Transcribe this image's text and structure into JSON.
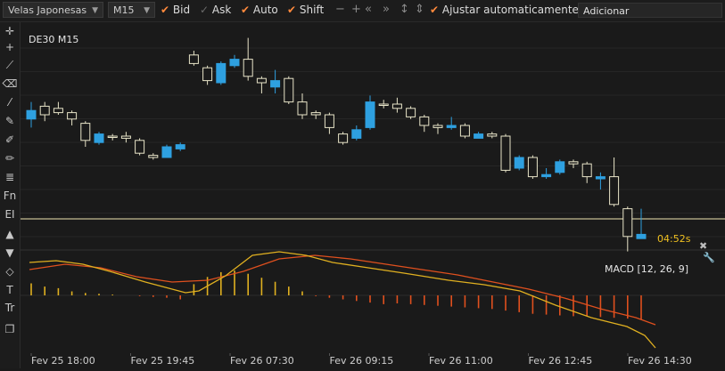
{
  "toolbar": {
    "chart_type": "Velas Japonesas",
    "timeframe": "M15",
    "checks": [
      {
        "label": "Bid",
        "checked": true
      },
      {
        "label": "Ask",
        "checked": false
      },
      {
        "label": "Auto",
        "checked": true
      },
      {
        "label": "Shift",
        "checked": true
      }
    ],
    "autoscale_label": "Ajustar automaticamente",
    "autoscale_checked": true,
    "add_placeholder": "Adicionar"
  },
  "sidebar": {
    "tools": [
      "crosshair-icon",
      "plus-icon",
      "ruler-icon",
      "eraser-icon",
      "line-icon",
      "pencil-icon",
      "pencil-alt-icon",
      "brush-icon",
      "fib-icon",
      "fn-icon",
      "ei-icon",
      "arrow-up-icon",
      "arrow-down-icon",
      "shapes-icon",
      "text-icon",
      "text-alt-icon",
      "layers-icon"
    ],
    "labels": {
      "fn": "Fn",
      "ei": "EI",
      "text": "T",
      "text_alt": "Tr"
    }
  },
  "chart": {
    "title": "DE30 M15",
    "countdown": "04:52s",
    "macd_label": "MACD [12, 26, 9]",
    "colors": {
      "bull": "#2ea0e0",
      "bear_fill": "#1a1a1a",
      "bear_stroke": "#e8e4c8",
      "price_line": "#f0e6b0",
      "signal": "#e0501e",
      "macd_line": "#e0b020"
    },
    "x_labels": [
      "Fev 25 18:00",
      "Fev 25 19:45",
      "Fev 26 07:30",
      "Fev 26 09:15",
      "Fev 26 11:00",
      "Fev 26 12:45",
      "Fev 26 14:30"
    ]
  },
  "chart_data": {
    "type": "candlestick",
    "title": "DE30 M15",
    "candles_ohlc_relative": [
      [
        0.62,
        0.58,
        0.66,
        0.54,
        "b"
      ],
      [
        0.6,
        0.64,
        0.66,
        0.57,
        "w"
      ],
      [
        0.63,
        0.61,
        0.66,
        0.6,
        "w"
      ],
      [
        0.61,
        0.58,
        0.62,
        0.55,
        "w"
      ],
      [
        0.56,
        0.48,
        0.57,
        0.45,
        "w"
      ],
      [
        0.47,
        0.51,
        0.52,
        0.46,
        "b"
      ],
      [
        0.5,
        0.5,
        0.51,
        0.48,
        "w"
      ],
      [
        0.5,
        0.49,
        0.52,
        0.47,
        "w"
      ],
      [
        0.48,
        0.42,
        0.49,
        0.41,
        "w"
      ],
      [
        0.41,
        0.4,
        0.42,
        0.39,
        "w"
      ],
      [
        0.4,
        0.45,
        0.46,
        0.4,
        "b"
      ],
      [
        0.44,
        0.46,
        0.47,
        0.43,
        "b"
      ],
      [
        0.88,
        0.84,
        0.9,
        0.83,
        "w"
      ],
      [
        0.82,
        0.76,
        0.83,
        0.74,
        "w"
      ],
      [
        0.75,
        0.84,
        0.85,
        0.74,
        "b"
      ],
      [
        0.83,
        0.86,
        0.88,
        0.82,
        "b"
      ],
      [
        0.86,
        0.78,
        0.96,
        0.76,
        "w"
      ],
      [
        0.77,
        0.75,
        0.78,
        0.7,
        "w"
      ],
      [
        0.73,
        0.76,
        0.81,
        0.7,
        "b"
      ],
      [
        0.77,
        0.66,
        0.78,
        0.65,
        "w"
      ],
      [
        0.66,
        0.6,
        0.7,
        0.58,
        "w"
      ],
      [
        0.6,
        0.61,
        0.62,
        0.58,
        "w"
      ],
      [
        0.6,
        0.54,
        0.61,
        0.51,
        "w"
      ],
      [
        0.51,
        0.47,
        0.52,
        0.46,
        "w"
      ],
      [
        0.49,
        0.53,
        0.55,
        0.48,
        "b"
      ],
      [
        0.54,
        0.66,
        0.69,
        0.53,
        "b"
      ],
      [
        0.65,
        0.65,
        0.67,
        0.63,
        "w"
      ],
      [
        0.65,
        0.63,
        0.68,
        0.61,
        "w"
      ],
      [
        0.63,
        0.59,
        0.64,
        0.58,
        "w"
      ],
      [
        0.59,
        0.55,
        0.6,
        0.52,
        "w"
      ],
      [
        0.55,
        0.54,
        0.56,
        0.51,
        "w"
      ],
      [
        0.54,
        0.55,
        0.59,
        0.53,
        "b"
      ],
      [
        0.55,
        0.5,
        0.56,
        0.49,
        "w"
      ],
      [
        0.49,
        0.51,
        0.52,
        0.49,
        "b"
      ],
      [
        0.5,
        0.51,
        0.52,
        0.49,
        "w"
      ],
      [
        0.5,
        0.34,
        0.51,
        0.33,
        "w"
      ],
      [
        0.35,
        0.4,
        0.41,
        0.34,
        "b"
      ],
      [
        0.4,
        0.31,
        0.41,
        0.3,
        "w"
      ],
      [
        0.31,
        0.32,
        0.35,
        0.3,
        "b"
      ],
      [
        0.33,
        0.38,
        0.39,
        0.32,
        "b"
      ],
      [
        0.38,
        0.37,
        0.39,
        0.35,
        "w"
      ],
      [
        0.37,
        0.31,
        0.38,
        0.28,
        "w"
      ],
      [
        0.31,
        0.3,
        0.33,
        0.25,
        "b"
      ],
      [
        0.31,
        0.18,
        0.4,
        0.17,
        "w"
      ],
      [
        0.16,
        0.03,
        0.17,
        -0.04,
        "w"
      ],
      [
        0.02,
        0.04,
        0.16,
        0.02,
        "b"
      ]
    ],
    "macd_histogram_relative": [
      0.3,
      0.22,
      0.18,
      0.1,
      0.06,
      0.04,
      0.02,
      0.0,
      -0.02,
      -0.04,
      -0.06,
      -0.1,
      0.28,
      0.46,
      0.58,
      0.62,
      0.54,
      0.44,
      0.34,
      0.22,
      0.1,
      -0.02,
      -0.06,
      -0.1,
      -0.14,
      -0.18,
      -0.22,
      -0.2,
      -0.22,
      -0.24,
      -0.26,
      -0.28,
      -0.3,
      -0.32,
      -0.34,
      -0.38,
      -0.42,
      -0.46,
      -0.48,
      -0.5,
      -0.52,
      -0.52,
      -0.54,
      -0.56,
      -0.58,
      -0.6
    ],
    "signal_color": "#e0501e",
    "macd_color": "#e0b020"
  }
}
